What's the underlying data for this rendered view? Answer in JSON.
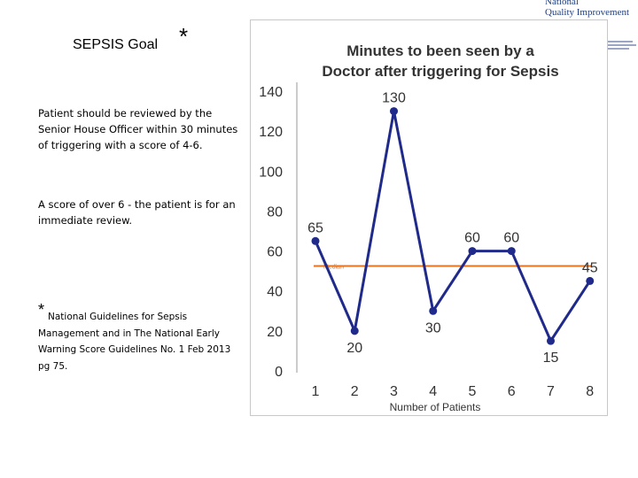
{
  "header": {
    "logo_line1": "National",
    "logo_line2": "Quality Improvement"
  },
  "left": {
    "title": "SEPSIS Goal",
    "title_star": "*",
    "paragraph1": "Patient should be reviewed by the Senior House Officer within 30 minutes of triggering with a score of 4-6.",
    "paragraph2": "A score of over 6  - the patient is for an immediate review.",
    "note_star": "*",
    "note_line1": "National Guidelines for Sepsis",
    "note_rest": "Management and in The National Early Warning Score Guidelines No. 1 Feb 2013 pg 75."
  },
  "chart_data": {
    "type": "line",
    "title_line1": "Minutes to been seen by a",
    "title_line2": "Doctor after triggering for Sepsis",
    "xlabel": "Number of Patients",
    "ylabel": "",
    "categories": [
      "1",
      "2",
      "3",
      "4",
      "5",
      "6",
      "7",
      "8"
    ],
    "values": [
      65,
      20,
      130,
      30,
      60,
      60,
      15,
      45
    ],
    "data_labels": [
      "65",
      "20",
      "130",
      "30",
      "60",
      "60",
      "15",
      "45"
    ],
    "ylim": [
      0,
      140
    ],
    "yticks": [
      0,
      20,
      40,
      60,
      80,
      100,
      120,
      140
    ],
    "median": 52.5,
    "median_label": "Median",
    "grid": false,
    "colors": {
      "line": "#1f2a8a",
      "median": "#e8731f",
      "text": "#333333"
    }
  }
}
